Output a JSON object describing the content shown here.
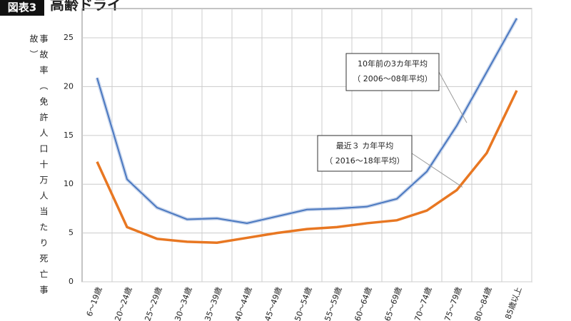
{
  "chart_data": {
    "type": "line",
    "badge": "図表3",
    "title": "高齢ドライ",
    "y_label": "事故率（免許人口十万人当たり死亡事故）",
    "categories": [
      "6～19歳",
      "20～24歳",
      "25～29歳",
      "30～34歳",
      "35～39歳",
      "40～44歳",
      "45～49歳",
      "50～54歳",
      "55～59歳",
      "60～64歳",
      "65～69歳",
      "70～74歳",
      "75～79歳",
      "80～84歳",
      "85歳以上"
    ],
    "series": [
      {
        "name": "10年前の3カ年平均",
        "note": "（ 2006～08年平均）",
        "color": "#4a78c0",
        "values": [
          20.9,
          10.5,
          7.6,
          6.4,
          6.5,
          6.0,
          6.7,
          7.4,
          7.5,
          7.7,
          8.5,
          11.3,
          16.0,
          21.5,
          27.0
        ]
      },
      {
        "name": "最近３ カ年平均",
        "note": "（ 2016～18年平均）",
        "color": "#e87722",
        "values": [
          12.3,
          5.6,
          4.4,
          4.1,
          4.0,
          4.5,
          5.0,
          5.4,
          5.6,
          6.0,
          6.3,
          7.3,
          9.4,
          13.2,
          19.6
        ]
      }
    ],
    "ylim": [
      0,
      28
    ],
    "yticks": [
      0,
      5,
      10,
      15,
      20,
      25
    ],
    "grid": true
  }
}
